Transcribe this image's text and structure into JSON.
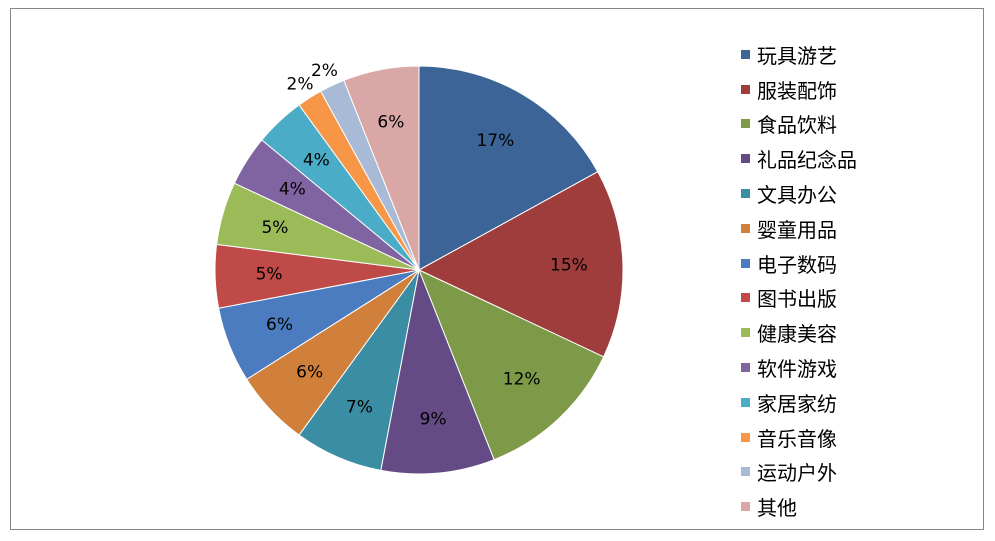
{
  "chart_data": {
    "type": "pie",
    "legend_position": "right",
    "categories": [
      "玩具游艺",
      "服装配饰",
      "食品饮料",
      "礼品纪念品",
      "文具办公",
      "婴童用品",
      "电子数码",
      "图书出版",
      "健康美容",
      "软件游戏",
      "家居家纺",
      "音乐音像",
      "运动户外",
      "其他"
    ],
    "values": [
      17,
      15,
      12,
      9,
      7,
      6,
      6,
      5,
      5,
      4,
      4,
      2,
      2,
      6
    ],
    "data_labels": [
      "17%",
      "15%",
      "12%",
      "9%",
      "7%",
      "6%",
      "6%",
      "5%",
      "5%",
      "4%",
      "4%",
      "2%",
      "2%",
      "6%"
    ],
    "colors": [
      "#3d6497",
      "#9e3d3b",
      "#7d9a48",
      "#644b85",
      "#3a8da3",
      "#d0803a",
      "#4a7cbf",
      "#bf4a48",
      "#9bbb59",
      "#8064a2",
      "#4aacc6",
      "#f79646",
      "#a9bad7",
      "#d9a7a6"
    ]
  }
}
